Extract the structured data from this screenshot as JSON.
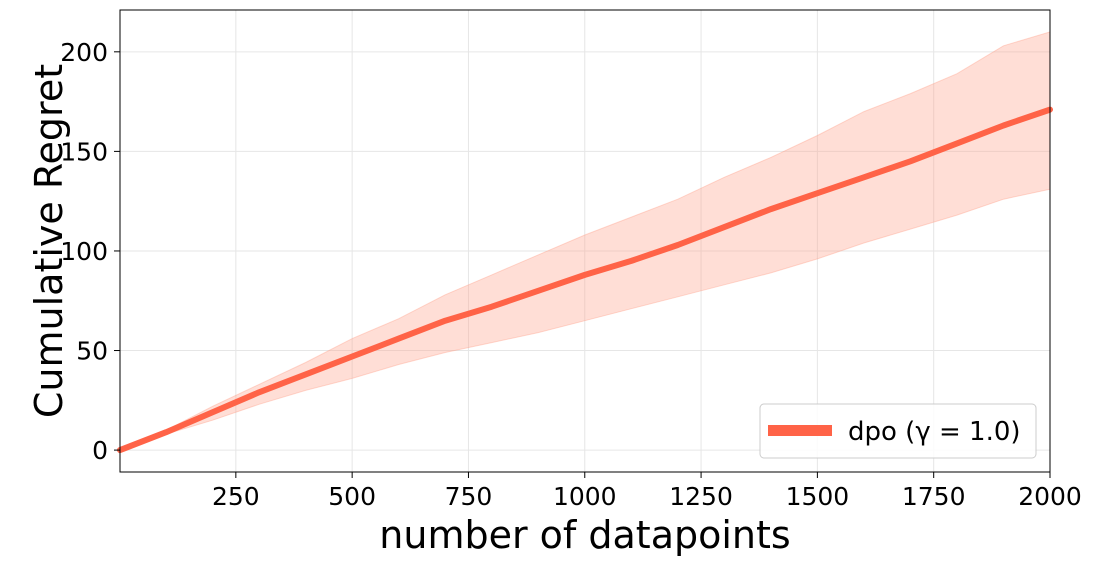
{
  "chart_data": {
    "type": "line",
    "xlabel": "number of datapoints",
    "ylabel": "Cumulative Regret",
    "xlim": [
      1,
      2000
    ],
    "ylim": [
      -11,
      221
    ],
    "xticks": [
      250,
      500,
      750,
      1000,
      1250,
      1500,
      1750,
      2000
    ],
    "yticks": [
      0,
      50,
      100,
      150,
      200
    ],
    "grid": true,
    "legend_position": "lower-right",
    "series": [
      {
        "name": "dpo (γ = 1.0)",
        "color": "#FF6347",
        "band_color": "#FFA08A",
        "x": [
          1,
          100,
          200,
          300,
          400,
          500,
          600,
          700,
          800,
          900,
          1000,
          1100,
          1200,
          1300,
          1400,
          1500,
          1600,
          1700,
          1800,
          1900,
          2000
        ],
        "y": [
          0,
          9,
          19,
          29,
          38,
          47,
          56,
          65,
          72,
          80,
          88,
          95,
          103,
          112,
          121,
          129,
          137,
          145,
          154,
          163,
          171
        ],
        "lower": [
          0,
          8,
          15,
          23,
          30,
          36,
          43,
          49,
          54,
          59,
          65,
          71,
          77,
          83,
          89,
          96,
          104,
          111,
          118,
          126,
          131
        ],
        "upper": [
          1,
          10,
          22,
          33,
          44,
          56,
          66,
          78,
          88,
          98,
          108,
          117,
          126,
          137,
          147,
          158,
          170,
          179,
          189,
          203,
          210
        ]
      }
    ]
  }
}
